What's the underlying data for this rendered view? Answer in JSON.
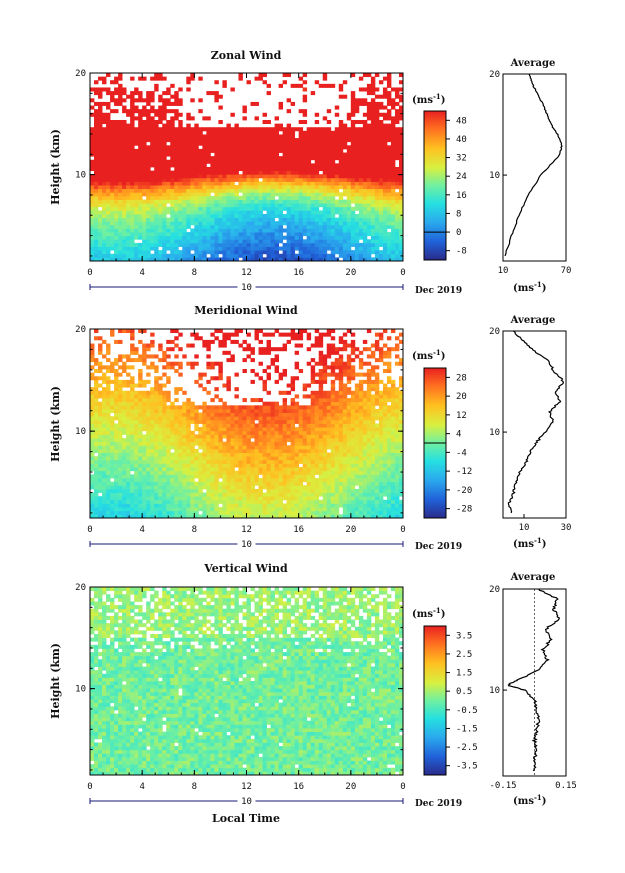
{
  "figure": {
    "xlabel": "Local Time",
    "date_label": "Dec 2019",
    "day_label": "10",
    "cbar_unit": "(ms",
    "cbar_unit_sup": "-1",
    "cbar_unit_close": ")",
    "avg_title": "Average",
    "avg_unit": "(ms",
    "avg_unit_sup": "-1",
    "avg_unit_close": ")"
  },
  "chart_data": [
    {
      "type": "heatmap",
      "title": "Zonal Wind",
      "ylabel": "Height (km)",
      "xlim": [
        0,
        24
      ],
      "ylim": [
        1.5,
        20
      ],
      "x_ticks": [
        "0",
        "4",
        "8",
        "12",
        "16",
        "20",
        "0"
      ],
      "y_ticks": [
        "10",
        "20"
      ],
      "colorbar_ticks": [
        "48",
        "40",
        "32",
        "24",
        "16",
        "8",
        "0",
        "-8"
      ],
      "colorbar_range": [
        -12,
        52
      ],
      "profile": {
        "title": "Average",
        "xlim": [
          10,
          70
        ],
        "x_ticks": [
          "10",
          "70"
        ],
        "y_ticks": [
          "10",
          "20"
        ],
        "height": [
          2,
          4,
          6,
          8,
          10,
          12,
          13,
          14,
          15,
          16,
          17,
          18,
          19,
          20
        ],
        "value": [
          12,
          18,
          25,
          34,
          46,
          64,
          66,
          62,
          56,
          52,
          48,
          43,
          38,
          35
        ]
      }
    },
    {
      "type": "heatmap",
      "title": "Meridional Wind",
      "ylabel": "Height (km)",
      "xlim": [
        0,
        24
      ],
      "ylim": [
        1.5,
        20
      ],
      "x_ticks": [
        "0",
        "4",
        "8",
        "12",
        "16",
        "20",
        "0"
      ],
      "y_ticks": [
        "10",
        "20"
      ],
      "colorbar_ticks": [
        "28",
        "20",
        "12",
        "4",
        "-4",
        "-12",
        "-20",
        "-28"
      ],
      "colorbar_range": [
        -32,
        32
      ],
      "profile": {
        "title": "Average",
        "xlim": [
          0,
          30
        ],
        "x_ticks": [
          "10",
          "30"
        ],
        "y_ticks": [
          "10",
          "20"
        ],
        "height": [
          2,
          3,
          4,
          5,
          6,
          7,
          8,
          9,
          10,
          11,
          12,
          13,
          14,
          15,
          16,
          17,
          18,
          19,
          20
        ],
        "value": [
          4,
          3,
          5,
          6,
          8,
          11,
          13,
          16,
          20,
          24,
          22,
          27,
          25,
          29,
          24,
          22,
          15,
          10,
          5
        ]
      }
    },
    {
      "type": "heatmap",
      "title": "Vertical Wind",
      "ylabel": "Height (km)",
      "xlim": [
        0,
        24
      ],
      "ylim": [
        1.5,
        20
      ],
      "x_ticks": [
        "0",
        "4",
        "8",
        "12",
        "16",
        "20",
        "0"
      ],
      "y_ticks": [
        "10",
        "20"
      ],
      "colorbar_ticks": [
        "3.5",
        "2.5",
        "1.5",
        "0.5",
        "-0.5",
        "-1.5",
        "-2.5",
        "-3.5"
      ],
      "colorbar_range": [
        -4,
        4
      ],
      "profile": {
        "title": "Average",
        "xlim": [
          -0.15,
          0.15
        ],
        "x_ticks": [
          "-0.15",
          "0.15"
        ],
        "y_ticks": [
          "10",
          "20"
        ],
        "height": [
          2,
          3,
          4,
          5,
          6,
          7,
          8,
          9,
          10,
          10.5,
          11,
          12,
          13,
          14,
          15,
          16,
          17,
          18,
          19,
          20
        ],
        "value": [
          0.0,
          0.0,
          0.01,
          0.0,
          0.01,
          0.02,
          0.01,
          0.0,
          -0.05,
          -0.13,
          -0.08,
          0.02,
          0.06,
          0.04,
          0.08,
          0.05,
          0.12,
          0.09,
          0.11,
          0.02
        ]
      }
    }
  ]
}
